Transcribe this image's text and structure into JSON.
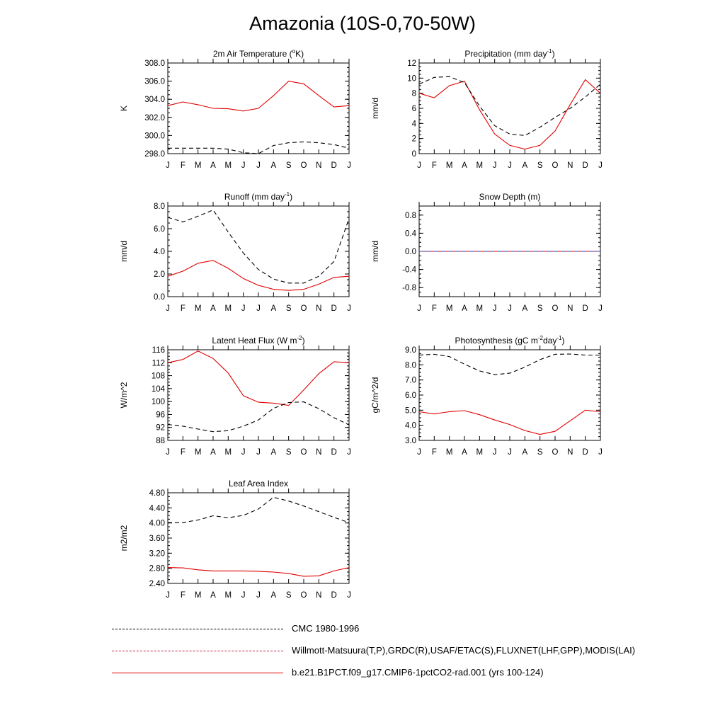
{
  "title": "Amazonia (10S-0,70-50W)",
  "colors": {
    "model": "#e00000",
    "obs": "#000000",
    "obs2": "#3040c0"
  },
  "months": [
    "J",
    "F",
    "M",
    "A",
    "M",
    "J",
    "J",
    "A",
    "S",
    "O",
    "N",
    "D",
    "J"
  ],
  "legend": [
    {
      "label": "CMC 1980-1996",
      "style": "dash-black"
    },
    {
      "label": "Willmott-Matsuura(T,P),GRDC(R),USAF/ETAC(S),FLUXNET(LHF,GPP),MODIS(LAI)",
      "style": "dash-mixed"
    },
    {
      "label": "b.e21.B1PCT.f09_g17.CMIP6-1pctCO2-rad.001 (yrs 100-124)",
      "style": "solid-red"
    }
  ],
  "chart_data": [
    {
      "id": "temp",
      "type": "line",
      "title": "2m Air Temperature (",
      "title_sup": "o",
      "title_end": "K)",
      "ylabel": "K",
      "ylim": [
        298.0,
        308.0
      ],
      "yticks": [
        "298.0",
        "300.0",
        "302.0",
        "304.0",
        "306.0",
        "308.0"
      ],
      "yminor": 0.5,
      "categories": [
        "J",
        "F",
        "M",
        "A",
        "M",
        "J",
        "J",
        "A",
        "S",
        "O",
        "N",
        "D",
        "J"
      ],
      "series": [
        {
          "style": "solid",
          "values": [
            303.3,
            303.7,
            303.4,
            303.0,
            302.95,
            302.7,
            303.0,
            304.4,
            306.0,
            305.7,
            304.4,
            303.15,
            303.3
          ]
        },
        {
          "style": "dash",
          "values": [
            298.6,
            298.6,
            298.6,
            298.6,
            298.5,
            298.1,
            298.0,
            298.9,
            299.2,
            299.3,
            299.2,
            299.0,
            298.6
          ]
        }
      ]
    },
    {
      "id": "precip",
      "type": "line",
      "title": "Precipitation (mm day",
      "title_sup": "-1",
      "title_end": ")",
      "ylabel": "mm/d",
      "ylim": [
        0,
        12
      ],
      "yticks": [
        "0",
        "2",
        "4",
        "6",
        "8",
        "10",
        "12"
      ],
      "yminor": 0.5,
      "categories": [
        "J",
        "F",
        "M",
        "A",
        "M",
        "J",
        "J",
        "A",
        "S",
        "O",
        "N",
        "D",
        "J"
      ],
      "series": [
        {
          "style": "solid",
          "values": [
            8.0,
            7.4,
            9.0,
            9.6,
            5.8,
            2.6,
            1.1,
            0.6,
            1.1,
            3.0,
            6.5,
            9.8,
            8.0
          ]
        },
        {
          "style": "dash",
          "values": [
            9.2,
            10.1,
            10.2,
            9.4,
            6.3,
            3.7,
            2.6,
            2.4,
            3.5,
            4.8,
            6.0,
            7.5,
            9.2
          ]
        }
      ]
    },
    {
      "id": "runoff",
      "type": "line",
      "title": "Runoff (mm day",
      "title_sup": "-1",
      "title_end": ")",
      "ylabel": "mm/d",
      "ylim": [
        0,
        8
      ],
      "yticks": [
        "0.0",
        "2.0",
        "4.0",
        "6.0",
        "8.0"
      ],
      "yminor": 0.5,
      "categories": [
        "J",
        "F",
        "M",
        "A",
        "M",
        "J",
        "J",
        "A",
        "S",
        "O",
        "N",
        "D",
        "J"
      ],
      "series": [
        {
          "style": "solid",
          "values": [
            1.8,
            2.25,
            2.95,
            3.2,
            2.5,
            1.6,
            1.0,
            0.65,
            0.55,
            0.65,
            1.1,
            1.7,
            1.8
          ]
        },
        {
          "style": "dash",
          "values": [
            7.0,
            6.6,
            7.1,
            7.65,
            5.7,
            3.85,
            2.4,
            1.55,
            1.2,
            1.2,
            1.8,
            3.1,
            6.9
          ]
        }
      ]
    },
    {
      "id": "snow",
      "type": "line",
      "title": "Snow Depth (m)",
      "title_sup": "",
      "title_end": "",
      "ylabel": "mm/d",
      "ylim": [
        -1.0,
        1.0
      ],
      "yticks": [
        "-0.8",
        "-0.4",
        "0.0",
        "0.4",
        "0.8"
      ],
      "ytickvals": [
        -0.8,
        -0.4,
        0.0,
        0.4,
        0.8
      ],
      "yminor": 0.1,
      "categories": [
        "J",
        "F",
        "M",
        "A",
        "M",
        "J",
        "J",
        "A",
        "S",
        "O",
        "N",
        "D",
        "J"
      ],
      "series": [
        {
          "style": "solid",
          "values": [
            0,
            0,
            0,
            0,
            0,
            0,
            0,
            0,
            0,
            0,
            0,
            0,
            0
          ]
        },
        {
          "style": "dash-mixed",
          "values": [
            0,
            0,
            0,
            0,
            0,
            0,
            0,
            0,
            0,
            0,
            0,
            0,
            0
          ]
        }
      ]
    },
    {
      "id": "lhf",
      "type": "line",
      "title": "Latent Heat Flux (W m",
      "title_sup": "-2",
      "title_end": ")",
      "ylabel": "W/m^2",
      "ylim": [
        88,
        116
      ],
      "yticks": [
        "88",
        "92",
        "96",
        "100",
        "104",
        "108",
        "112",
        "116"
      ],
      "yminor": 1,
      "categories": [
        "J",
        "F",
        "M",
        "A",
        "M",
        "J",
        "J",
        "A",
        "S",
        "O",
        "N",
        "D",
        "J"
      ],
      "series": [
        {
          "style": "solid",
          "values": [
            112.0,
            113.0,
            115.6,
            113.3,
            108.8,
            101.8,
            99.8,
            99.5,
            98.8,
            103.6,
            108.6,
            112.3,
            112.0
          ]
        },
        {
          "style": "dash",
          "values": [
            92.9,
            92.4,
            91.5,
            90.7,
            91.0,
            92.4,
            94.3,
            97.9,
            99.7,
            99.9,
            97.8,
            95.0,
            92.8
          ]
        }
      ]
    },
    {
      "id": "gpp",
      "type": "line",
      "title": "Photosynthesis (gC m",
      "title_sup": "-2",
      "title_end": "day",
      "title_sup2": "-1",
      "title_end2": ")",
      "ylabel": "gC/m^2/d",
      "ylim": [
        3.0,
        9.0
      ],
      "yticks": [
        "3.0",
        "4.0",
        "5.0",
        "6.0",
        "7.0",
        "8.0",
        "9.0"
      ],
      "yminor": 0.25,
      "categories": [
        "J",
        "F",
        "M",
        "A",
        "M",
        "J",
        "J",
        "A",
        "S",
        "O",
        "N",
        "D",
        "J"
      ],
      "series": [
        {
          "style": "solid",
          "values": [
            4.9,
            4.75,
            4.9,
            4.97,
            4.7,
            4.35,
            4.05,
            3.65,
            3.4,
            3.6,
            4.3,
            5.0,
            4.9
          ]
        },
        {
          "style": "dash",
          "values": [
            8.65,
            8.7,
            8.55,
            8.05,
            7.6,
            7.35,
            7.45,
            7.85,
            8.35,
            8.7,
            8.72,
            8.65,
            8.65
          ]
        }
      ]
    },
    {
      "id": "lai",
      "type": "line",
      "title": "Leaf Area Index",
      "title_sup": "",
      "title_end": "",
      "ylabel": "m2/m2",
      "ylim": [
        2.4,
        4.8
      ],
      "yticks": [
        "2.40",
        "2.80",
        "3.20",
        "3.60",
        "4.00",
        "4.40",
        "4.80"
      ],
      "yminor": 0.1,
      "categories": [
        "J",
        "F",
        "M",
        "A",
        "M",
        "J",
        "J",
        "A",
        "S",
        "O",
        "N",
        "D",
        "J"
      ],
      "series": [
        {
          "style": "solid",
          "values": [
            2.82,
            2.81,
            2.76,
            2.73,
            2.73,
            2.73,
            2.72,
            2.7,
            2.66,
            2.59,
            2.6,
            2.73,
            2.82
          ]
        },
        {
          "style": "dash",
          "values": [
            4.01,
            4.01,
            4.08,
            4.19,
            4.14,
            4.2,
            4.37,
            4.68,
            4.58,
            4.45,
            4.3,
            4.15,
            4.01
          ]
        }
      ]
    }
  ]
}
